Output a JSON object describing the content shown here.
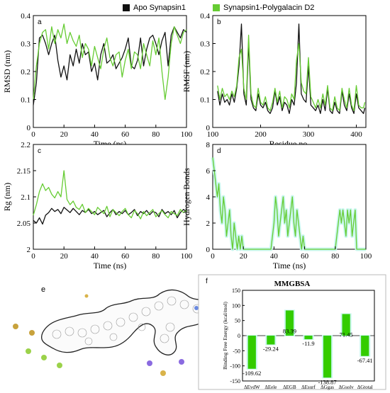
{
  "legend": {
    "apo": {
      "label": "Apo Synapsin1",
      "color": "#111111"
    },
    "complex": {
      "label": "Synapsin1-Polygalacin D2",
      "color": "#66cc33"
    }
  },
  "chart_data": [
    {
      "panel": "a",
      "type": "line",
      "xlabel": "Time (ns)",
      "ylabel": "RMSD (nm)",
      "xlim": [
        0,
        100
      ],
      "ylim": [
        0,
        0.4
      ],
      "xticks": [
        0,
        20,
        40,
        60,
        80,
        100
      ],
      "yticks": [
        0,
        0.1,
        0.2,
        0.3,
        0.4
      ],
      "series": [
        {
          "name": "Apo Synapsin1",
          "color": "#111111",
          "x": [
            0,
            2,
            4,
            6,
            8,
            10,
            12,
            14,
            16,
            18,
            20,
            22,
            24,
            26,
            28,
            30,
            32,
            34,
            36,
            38,
            40,
            42,
            44,
            46,
            48,
            50,
            52,
            54,
            56,
            58,
            60,
            62,
            64,
            66,
            68,
            70,
            72,
            74,
            76,
            78,
            80,
            82,
            84,
            86,
            88,
            90,
            92,
            94,
            96,
            98,
            100
          ],
          "y": [
            0.08,
            0.16,
            0.32,
            0.33,
            0.3,
            0.26,
            0.3,
            0.33,
            0.24,
            0.18,
            0.22,
            0.17,
            0.26,
            0.22,
            0.28,
            0.23,
            0.3,
            0.26,
            0.27,
            0.2,
            0.23,
            0.17,
            0.26,
            0.3,
            0.23,
            0.24,
            0.26,
            0.21,
            0.23,
            0.25,
            0.28,
            0.32,
            0.22,
            0.21,
            0.24,
            0.32,
            0.22,
            0.28,
            0.32,
            0.33,
            0.3,
            0.26,
            0.31,
            0.34,
            0.22,
            0.33,
            0.36,
            0.34,
            0.32,
            0.35,
            0.34
          ]
        },
        {
          "name": "Synapsin1-Polygalacin D2",
          "color": "#66cc33",
          "x": [
            0,
            2,
            4,
            6,
            8,
            10,
            12,
            14,
            16,
            18,
            20,
            22,
            24,
            26,
            28,
            30,
            32,
            34,
            36,
            38,
            40,
            42,
            44,
            46,
            48,
            50,
            52,
            54,
            56,
            58,
            60,
            62,
            64,
            66,
            68,
            70,
            72,
            74,
            76,
            78,
            80,
            82,
            84,
            86,
            88,
            90,
            92,
            94,
            96,
            98,
            100
          ],
          "y": [
            0.1,
            0.22,
            0.3,
            0.34,
            0.35,
            0.28,
            0.36,
            0.3,
            0.35,
            0.32,
            0.37,
            0.3,
            0.34,
            0.31,
            0.29,
            0.33,
            0.25,
            0.3,
            0.28,
            0.22,
            0.29,
            0.25,
            0.21,
            0.28,
            0.32,
            0.25,
            0.22,
            0.26,
            0.27,
            0.18,
            0.24,
            0.28,
            0.21,
            0.27,
            0.26,
            0.21,
            0.3,
            0.26,
            0.22,
            0.31,
            0.26,
            0.32,
            0.2,
            0.1,
            0.18,
            0.3,
            0.36,
            0.33,
            0.3,
            0.34,
            0.35
          ]
        }
      ]
    },
    {
      "panel": "b",
      "type": "line",
      "xlabel": "Residue no.",
      "ylabel": "RMSF (nm)",
      "xlim": [
        100,
        420
      ],
      "ylim": [
        0,
        0.4
      ],
      "xticks": [
        100,
        200,
        300,
        400
      ],
      "yticks": [
        0,
        0.1,
        0.2,
        0.3,
        0.4
      ],
      "series": [
        {
          "name": "Apo Synapsin1",
          "color": "#111111",
          "x": [
            110,
            115,
            120,
            125,
            130,
            135,
            140,
            145,
            150,
            155,
            160,
            165,
            170,
            175,
            180,
            185,
            190,
            195,
            200,
            205,
            210,
            215,
            220,
            225,
            230,
            235,
            240,
            245,
            250,
            255,
            260,
            265,
            270,
            275,
            280,
            285,
            290,
            295,
            300,
            305,
            310,
            315,
            320,
            325,
            330,
            335,
            340,
            345,
            350,
            355,
            360,
            365,
            370,
            375,
            380,
            385,
            390,
            395,
            400,
            405,
            410,
            415,
            418
          ],
          "y": [
            0.13,
            0.08,
            0.12,
            0.09,
            0.1,
            0.08,
            0.12,
            0.09,
            0.14,
            0.22,
            0.37,
            0.12,
            0.08,
            0.3,
            0.1,
            0.07,
            0.06,
            0.12,
            0.08,
            0.07,
            0.09,
            0.06,
            0.05,
            0.07,
            0.13,
            0.08,
            0.11,
            0.06,
            0.09,
            0.08,
            0.05,
            0.1,
            0.08,
            0.16,
            0.37,
            0.12,
            0.1,
            0.09,
            0.22,
            0.08,
            0.07,
            0.06,
            0.08,
            0.05,
            0.1,
            0.06,
            0.14,
            0.06,
            0.05,
            0.09,
            0.06,
            0.05,
            0.13,
            0.08,
            0.06,
            0.12,
            0.07,
            0.05,
            0.12,
            0.07,
            0.06,
            0.05,
            0.07
          ]
        },
        {
          "name": "Synapsin1-Polygalacin D2",
          "color": "#66cc33",
          "x": [
            110,
            115,
            120,
            125,
            130,
            135,
            140,
            145,
            150,
            155,
            160,
            165,
            170,
            175,
            180,
            185,
            190,
            195,
            200,
            205,
            210,
            215,
            220,
            225,
            230,
            235,
            240,
            245,
            250,
            255,
            260,
            265,
            270,
            275,
            280,
            285,
            290,
            295,
            300,
            305,
            310,
            315,
            320,
            325,
            330,
            335,
            340,
            345,
            350,
            355,
            360,
            365,
            370,
            375,
            380,
            385,
            390,
            395,
            400,
            405,
            410,
            415,
            418
          ],
          "y": [
            0.15,
            0.1,
            0.14,
            0.11,
            0.12,
            0.1,
            0.13,
            0.11,
            0.15,
            0.25,
            0.28,
            0.14,
            0.1,
            0.33,
            0.12,
            0.08,
            0.07,
            0.14,
            0.09,
            0.08,
            0.11,
            0.07,
            0.06,
            0.09,
            0.14,
            0.09,
            0.13,
            0.07,
            0.11,
            0.1,
            0.07,
            0.12,
            0.1,
            0.24,
            0.3,
            0.16,
            0.13,
            0.12,
            0.25,
            0.11,
            0.09,
            0.07,
            0.1,
            0.07,
            0.12,
            0.08,
            0.15,
            0.07,
            0.06,
            0.11,
            0.07,
            0.06,
            0.14,
            0.1,
            0.07,
            0.14,
            0.08,
            0.06,
            0.15,
            0.08,
            0.07,
            0.07,
            0.09
          ]
        }
      ]
    },
    {
      "panel": "c",
      "type": "line",
      "xlabel": "Time (ns)",
      "ylabel": "Rg (nm)",
      "xlim": [
        0,
        100
      ],
      "ylim": [
        2,
        2.2
      ],
      "xticks": [
        0,
        20,
        40,
        60,
        80,
        100
      ],
      "yticks": [
        2,
        2.05,
        2.1,
        2.15,
        2.2
      ],
      "yticklabels": [
        "2",
        "2.05",
        "2.1",
        "2.15",
        "2.2"
      ],
      "series": [
        {
          "name": "Apo Synapsin1",
          "color": "#111111",
          "x": [
            0,
            2,
            4,
            6,
            8,
            10,
            12,
            14,
            16,
            18,
            20,
            22,
            24,
            26,
            28,
            30,
            32,
            34,
            36,
            38,
            40,
            42,
            44,
            46,
            48,
            50,
            52,
            54,
            56,
            58,
            60,
            62,
            64,
            66,
            68,
            70,
            72,
            74,
            76,
            78,
            80,
            82,
            84,
            86,
            88,
            90,
            92,
            94,
            96,
            98,
            100
          ],
          "y": [
            2.055,
            2.05,
            2.06,
            2.048,
            2.065,
            2.07,
            2.078,
            2.072,
            2.076,
            2.068,
            2.08,
            2.075,
            2.07,
            2.078,
            2.072,
            2.066,
            2.074,
            2.07,
            2.076,
            2.068,
            2.072,
            2.066,
            2.07,
            2.074,
            2.062,
            2.07,
            2.076,
            2.066,
            2.072,
            2.068,
            2.074,
            2.066,
            2.07,
            2.076,
            2.064,
            2.072,
            2.068,
            2.074,
            2.066,
            2.072,
            2.07,
            2.062,
            2.076,
            2.068,
            2.072,
            2.066,
            2.074,
            2.06,
            2.07,
            2.076,
            2.072
          ]
        },
        {
          "name": "Synapsin1-Polygalacin D2",
          "color": "#66cc33",
          "x": [
            0,
            2,
            4,
            6,
            8,
            10,
            12,
            14,
            16,
            18,
            20,
            22,
            24,
            26,
            28,
            30,
            32,
            34,
            36,
            38,
            40,
            42,
            44,
            46,
            48,
            50,
            52,
            54,
            56,
            58,
            60,
            62,
            64,
            66,
            68,
            70,
            72,
            74,
            76,
            78,
            80,
            82,
            84,
            86,
            88,
            90,
            92,
            94,
            96,
            98,
            100
          ],
          "y": [
            2.065,
            2.085,
            2.11,
            2.125,
            2.112,
            2.118,
            2.105,
            2.098,
            2.11,
            2.1,
            2.15,
            2.095,
            2.085,
            2.092,
            2.08,
            2.076,
            2.086,
            2.07,
            2.078,
            2.072,
            2.066,
            2.08,
            2.074,
            2.068,
            2.082,
            2.062,
            2.076,
            2.07,
            2.064,
            2.072,
            2.078,
            2.066,
            2.06,
            2.074,
            2.068,
            2.058,
            2.072,
            2.064,
            2.07,
            2.076,
            2.062,
            2.068,
            2.074,
            2.066,
            2.06,
            2.072,
            2.068,
            2.064,
            2.076,
            2.07,
            2.074
          ]
        }
      ]
    },
    {
      "panel": "d",
      "type": "line",
      "xlabel": "Time (ns)",
      "ylabel": "Hydrogen Bonds",
      "xlim": [
        0,
        100
      ],
      "ylim": [
        0,
        8
      ],
      "xticks": [
        0,
        20,
        40,
        60,
        80,
        100
      ],
      "yticks": [
        0,
        2,
        4,
        6,
        8
      ],
      "series": [
        {
          "name": "Synapsin1-Polygalacin D2",
          "color": "#66cc33",
          "x": [
            0,
            1,
            2,
            3,
            4,
            5,
            6,
            7,
            8,
            9,
            10,
            11,
            12,
            13,
            14,
            15,
            16,
            17,
            18,
            19,
            20,
            22,
            24,
            26,
            28,
            30,
            32,
            34,
            36,
            38,
            40,
            41,
            42,
            43,
            44,
            45,
            46,
            47,
            48,
            49,
            50,
            51,
            52,
            53,
            54,
            55,
            56,
            57,
            58,
            59,
            60,
            62,
            64,
            66,
            68,
            70,
            72,
            74,
            76,
            78,
            80,
            82,
            83,
            84,
            85,
            86,
            87,
            88,
            89,
            90,
            91,
            92,
            93,
            94,
            96,
            98,
            100
          ],
          "y": [
            7,
            6,
            5,
            4,
            5,
            3,
            2,
            4,
            3,
            1,
            2,
            3,
            1,
            0,
            2,
            1,
            0,
            1,
            0,
            1,
            0,
            0,
            0,
            0,
            0,
            0,
            0,
            0,
            0,
            0,
            2,
            4,
            3,
            1,
            2,
            3,
            4,
            2,
            3,
            1,
            2,
            3,
            4,
            2,
            1,
            3,
            2,
            1,
            0,
            1,
            0,
            0,
            0,
            0,
            0,
            0,
            0,
            0,
            0,
            0,
            0,
            2,
            3,
            2,
            3,
            2,
            1,
            3,
            2,
            3,
            1,
            2,
            3,
            0,
            0,
            0,
            0
          ]
        }
      ]
    },
    {
      "panel": "f",
      "type": "bar",
      "title": "MMGBSA",
      "ylabel": "Binding Free Energy (kcal/mol)",
      "categories": [
        "ΔEvdW",
        "ΔEele",
        "ΔEGB",
        "ΔEsurf",
        "ΔGgas",
        "ΔGsolv",
        "ΔGtotal"
      ],
      "values": [
        -109.62,
        -29.24,
        83.39,
        -11.9,
        -138.87,
        71.45,
        -67.41
      ],
      "value_labels": [
        "-109.62",
        "-29.24",
        "83.39",
        "-11.9",
        "-138.87",
        "71.45",
        "-67.41"
      ],
      "ylim": [
        -150,
        150
      ],
      "yticks": [
        -150,
        -100,
        -50,
        0,
        50,
        100,
        150
      ],
      "color": "#33cc00"
    }
  ],
  "panel_e": {
    "label": "e",
    "image": "ligand-interaction-diagram"
  }
}
